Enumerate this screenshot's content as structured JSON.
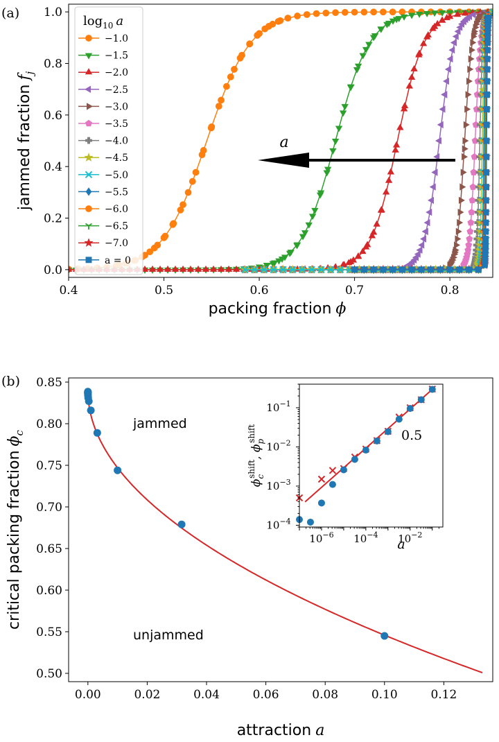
{
  "chart_data": [
    {
      "panel_label": "(a)",
      "type": "line",
      "xlabel_text": "packing fraction",
      "xlabel_symbol": "ϕ",
      "ylabel_text": "jammed fraction",
      "ylabel_symbol": "f",
      "ylabel_subscript": "j",
      "xlim": [
        0.4,
        0.845
      ],
      "ylim": [
        -0.03,
        1.03
      ],
      "xticks": [
        "0.4",
        "0.5",
        "0.6",
        "0.7",
        "0.8"
      ],
      "yticks": [
        "0.0",
        "0.2",
        "0.4",
        "0.6",
        "0.8",
        "1.0"
      ],
      "legend_title": "log",
      "legend_title_sub": "10",
      "legend_title_var": "a",
      "legend_position": "top-left",
      "arrow_label": "a",
      "series": [
        {
          "name": "−1.0",
          "color": "#ff7f0e",
          "marker": "circle",
          "phi_c": 0.545,
          "width": 0.023,
          "x_min": 0.4
        },
        {
          "name": "−1.5",
          "color": "#2ca02c",
          "marker": "triangle-down",
          "phi_c": 0.68,
          "width": 0.018,
          "x_min": 0.4
        },
        {
          "name": "−2.0",
          "color": "#d62728",
          "marker": "triangle-up",
          "phi_c": 0.745,
          "width": 0.014,
          "x_min": 0.4
        },
        {
          "name": "−2.5",
          "color": "#9467bd",
          "marker": "triangle-left",
          "phi_c": 0.789,
          "width": 0.008,
          "x_min": 0.585
        },
        {
          "name": "−3.0",
          "color": "#8c564b",
          "marker": "triangle-right",
          "phi_c": 0.8155,
          "width": 0.004,
          "x_min": 0.585
        },
        {
          "name": "−3.5",
          "color": "#e377c2",
          "marker": "pentagon",
          "phi_c": 0.8265,
          "width": 0.003,
          "x_min": 0.585
        },
        {
          "name": "−4.0",
          "color": "#7f7f7f",
          "marker": "plus",
          "phi_c": 0.8315,
          "width": 0.0015,
          "x_min": 0.585
        },
        {
          "name": "−4.5",
          "color": "#bcbd22",
          "marker": "star",
          "phi_c": 0.834,
          "width": 0.0012,
          "x_min": 0.585
        },
        {
          "name": "−5.0",
          "color": "#17becf",
          "marker": "x",
          "phi_c": 0.8355,
          "width": 0.0009,
          "x_min": 0.585
        },
        {
          "name": "−5.5",
          "color": "#1f77b4",
          "marker": "diamond",
          "phi_c": 0.8365,
          "width": 0.0008,
          "x_min": 0.7
        },
        {
          "name": "−6.0",
          "color": "#ff7f0e",
          "marker": "circle",
          "phi_c": 0.8372,
          "width": 0.0007,
          "x_min": 0.7
        },
        {
          "name": "−6.5",
          "color": "#2ca02c",
          "marker": "tri-down",
          "phi_c": 0.8378,
          "width": 0.0006,
          "x_min": 0.7
        },
        {
          "name": "−7.0",
          "color": "#d62728",
          "marker": "star",
          "phi_c": 0.8382,
          "width": 0.0005,
          "x_min": 0.7
        },
        {
          "name": "a = 0",
          "color": "#1f77b4",
          "marker": "square",
          "phi_c": 0.8385,
          "width": 0.0005,
          "x_min": 0.7
        }
      ]
    },
    {
      "panel_label": "(b)",
      "type": "scatter",
      "xlabel_text": "attraction",
      "xlabel_symbol": "a",
      "ylabel_text": "critical packing fraction",
      "ylabel_symbol": "ϕ",
      "ylabel_subscript": "c",
      "xlim": [
        -0.0065,
        0.1365
      ],
      "ylim": [
        0.49,
        0.855
      ],
      "xticks": [
        "0.00",
        "0.02",
        "0.04",
        "0.06",
        "0.08",
        "0.10",
        "0.12"
      ],
      "yticks": [
        "0.50",
        "0.55",
        "0.60",
        "0.65",
        "0.70",
        "0.75",
        "0.80",
        "0.85"
      ],
      "annotations": [
        "jammed",
        "unjammed"
      ],
      "points": {
        "x": [
          0.1,
          0.0316,
          0.01,
          0.00316,
          0.001,
          0.000316,
          0.0001,
          3.16e-05,
          1e-05,
          3.16e-06,
          1e-06,
          3.16e-07,
          1e-07,
          0
        ],
        "y": [
          0.545,
          0.679,
          0.744,
          0.789,
          0.816,
          0.827,
          0.831,
          0.834,
          0.8355,
          0.8365,
          0.8372,
          0.8378,
          0.8382,
          0.8385
        ]
      },
      "fit": {
        "phi0": 0.84,
        "coef": 0.93,
        "exponent": 0.5,
        "x_max": 0.133,
        "color": "#d62728"
      },
      "inset": {
        "type": "scatter",
        "xscale": "log",
        "yscale": "log",
        "xlim": [
          1e-07,
          0.3
        ],
        "ylim": [
          9e-05,
          0.4
        ],
        "xticks": [
          "10",
          "10",
          "10"
        ],
        "xtick_exponents": [
          "−6",
          "−4",
          "−2"
        ],
        "xtick_values": [
          1e-06,
          0.0001,
          0.01
        ],
        "yticks": [
          "10",
          "10",
          "10",
          "10"
        ],
        "ytick_exponents": [
          "−4",
          "−3",
          "−2",
          "−1"
        ],
        "ytick_values": [
          0.0001,
          0.001,
          0.01,
          0.1
        ],
        "xlabel": "a",
        "ylabel_text": "ϕ",
        "ylabel_sub1": "c",
        "ylabel_sup": "shift",
        "ylabel_sep": ", ϕ",
        "ylabel_sub2": "p",
        "slope_label": "0.5",
        "phi_c_shift": {
          "x": [
            1e-07,
            3.16e-07,
            1e-06,
            3.16e-06,
            1e-05,
            3.16e-05,
            0.0001,
            0.000316,
            0.001,
            0.00316,
            0.01,
            0.0316,
            0.1
          ],
          "y": [
            0.00014,
            0.00012,
            0.00037,
            0.0011,
            0.0026,
            0.0048,
            0.0083,
            0.0142,
            0.0245,
            0.051,
            0.096,
            0.161,
            0.295
          ],
          "color": "#1f77b4"
        },
        "phi_p_shift": {
          "x": [
            1e-07,
            1e-06,
            3.16e-06,
            1e-05,
            3.16e-05,
            0.0001,
            0.000316,
            0.001,
            0.00316,
            0.01,
            0.0316,
            0.1
          ],
          "y": [
            0.0005,
            0.0015,
            0.0025,
            0.0028,
            0.0055,
            0.0088,
            0.0145,
            0.025,
            0.058,
            0.1,
            0.16,
            0.3
          ],
          "color": "#d62728"
        },
        "fit": {
          "coef": 0.93,
          "exponent": 0.5,
          "x_range": [
            1.8e-07,
            0.1
          ],
          "color": "#d62728"
        }
      }
    }
  ]
}
